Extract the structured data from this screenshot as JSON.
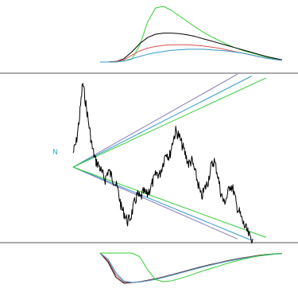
{
  "chart_data": {
    "type": "line",
    "title": "",
    "xlabel": "",
    "ylabel": "",
    "grid": false,
    "annotations": [
      {
        "text": "N"
      }
    ],
    "colors": {
      "price": "#000000",
      "green": "#33cc33",
      "black": "#000000",
      "red": "#e05050",
      "blue": "#3399cc",
      "purple": "#8a7ab8",
      "label": "#33aadd",
      "rule": "#555555"
    },
    "main_price": {
      "x": [
        0,
        4,
        8,
        12,
        16,
        20,
        24,
        28,
        32,
        36,
        40,
        44,
        48,
        52,
        56,
        60,
        64,
        68,
        72,
        76,
        80,
        84,
        88,
        92,
        96,
        100,
        104,
        108,
        112,
        116,
        120,
        124,
        128,
        132,
        136,
        140,
        144,
        148,
        152,
        156,
        160,
        164,
        168,
        172,
        176,
        180,
        184,
        188,
        192,
        196,
        200,
        204,
        208,
        212,
        216,
        220,
        224
      ],
      "y": [
        0.55,
        0.62,
        0.78,
        1.0,
        0.86,
        0.72,
        0.58,
        0.5,
        0.47,
        0.42,
        0.38,
        0.44,
        0.4,
        0.36,
        0.31,
        0.2,
        0.16,
        0.11,
        0.14,
        0.22,
        0.28,
        0.26,
        0.3,
        0.28,
        0.32,
        0.37,
        0.42,
        0.41,
        0.48,
        0.56,
        0.52,
        0.62,
        0.69,
        0.66,
        0.6,
        0.54,
        0.48,
        0.5,
        0.43,
        0.35,
        0.26,
        0.32,
        0.36,
        0.46,
        0.5,
        0.42,
        0.3,
        0.23,
        0.27,
        0.35,
        0.31,
        0.21,
        0.16,
        0.1,
        0.06,
        0.01,
        0.0
      ]
    },
    "fan_lines": {
      "origin_x": 0,
      "end_x": 205,
      "upper": [
        {
          "series": "purple",
          "end_y": 0.99
        },
        {
          "series": "blue",
          "end_y": 0.97
        },
        {
          "series": "green",
          "end_y": 0.95
        }
      ],
      "lower": [
        {
          "series": "purple",
          "end_y": -0.95
        },
        {
          "series": "blue",
          "end_y": -0.97
        },
        {
          "series": "green",
          "end_y": -0.93
        }
      ]
    },
    "top_panel": {
      "x": [
        0,
        10,
        20,
        30,
        40,
        50,
        60,
        70,
        80,
        90,
        100,
        110,
        120,
        130,
        140,
        150,
        160,
        170,
        180,
        190,
        200,
        210,
        220,
        230
      ],
      "series": [
        {
          "color": "green",
          "values": [
            0,
            0,
            0.01,
            0.02,
            0.05,
            0.3,
            0.72,
            0.97,
            1.0,
            0.93,
            0.83,
            0.73,
            0.63,
            0.54,
            0.46,
            0.39,
            0.32,
            0.26,
            0.21,
            0.17,
            0.13,
            0.09,
            0.06,
            0.03
          ]
        },
        {
          "color": "black",
          "values": [
            0,
            0,
            0.01,
            0.06,
            0.18,
            0.33,
            0.44,
            0.5,
            0.52,
            0.52,
            0.51,
            0.49,
            0.46,
            0.42,
            0.38,
            0.34,
            0.3,
            0.26,
            0.22,
            0.18,
            0.14,
            0.1,
            0.07,
            0.04
          ]
        },
        {
          "color": "red",
          "values": [
            0,
            0,
            0.01,
            0.04,
            0.12,
            0.2,
            0.25,
            0.28,
            0.3,
            0.31,
            0.31,
            0.31,
            0.3,
            0.29,
            0.27,
            0.25,
            0.22,
            0.19,
            0.16,
            0.13,
            0.1,
            0.07,
            0.05,
            0.03
          ]
        },
        {
          "color": "blue",
          "values": [
            0,
            0,
            0.0,
            0.02,
            0.06,
            0.1,
            0.14,
            0.17,
            0.19,
            0.21,
            0.22,
            0.23,
            0.23,
            0.23,
            0.22,
            0.21,
            0.2,
            0.18,
            0.16,
            0.13,
            0.1,
            0.07,
            0.05,
            0.03
          ]
        }
      ]
    },
    "bottom_panel": {
      "x": [
        0,
        10,
        20,
        30,
        40,
        50,
        60,
        70,
        80,
        90,
        100,
        110,
        120,
        130,
        140,
        150,
        160,
        170,
        180,
        190,
        200,
        210,
        220,
        230
      ],
      "series": [
        {
          "color": "black",
          "values": [
            0,
            -0.3,
            -0.8,
            -1.0,
            -0.98,
            -0.95,
            -0.9,
            -0.85,
            -0.79,
            -0.72,
            -0.65,
            -0.58,
            -0.51,
            -0.44,
            -0.38,
            -0.32,
            -0.26,
            -0.21,
            -0.16,
            -0.12,
            -0.08,
            -0.05,
            -0.03,
            -0.01
          ]
        },
        {
          "color": "red",
          "values": [
            0,
            -0.25,
            -0.72,
            -0.96,
            -0.98,
            -0.95,
            -0.91,
            -0.86,
            -0.8,
            -0.73,
            -0.66,
            -0.59,
            -0.52,
            -0.45,
            -0.39,
            -0.33,
            -0.27,
            -0.22,
            -0.17,
            -0.13,
            -0.09,
            -0.06,
            -0.03,
            -0.01
          ]
        },
        {
          "color": "blue",
          "values": [
            0,
            -0.2,
            -0.65,
            -0.93,
            -0.97,
            -0.96,
            -0.92,
            -0.87,
            -0.81,
            -0.74,
            -0.67,
            -0.6,
            -0.53,
            -0.46,
            -0.4,
            -0.34,
            -0.28,
            -0.23,
            -0.18,
            -0.14,
            -0.1,
            -0.07,
            -0.04,
            -0.02
          ]
        },
        {
          "color": "green",
          "values": [
            0,
            0,
            0,
            0,
            0,
            -0.12,
            -0.55,
            -0.88,
            -0.95,
            -0.92,
            -0.85,
            -0.77,
            -0.68,
            -0.59,
            -0.51,
            -0.43,
            -0.35,
            -0.28,
            -0.21,
            -0.15,
            -0.1,
            -0.06,
            -0.03,
            -0.01
          ]
        }
      ]
    }
  }
}
